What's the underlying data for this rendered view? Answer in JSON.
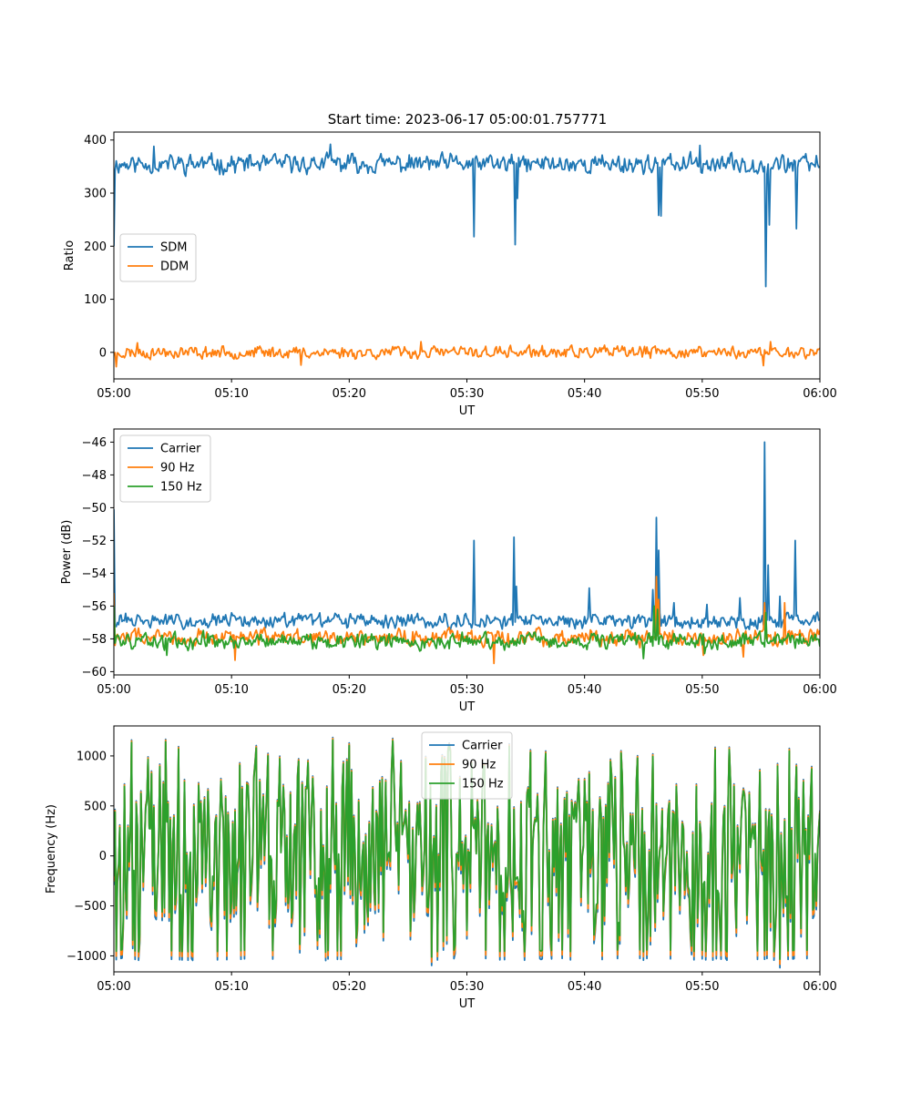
{
  "figure_title": "Start time: 2023-06-17 05:00:01.757771",
  "chart_data": [
    {
      "type": "line",
      "title": "Start time: 2023-06-17 05:00:01.757771",
      "xlabel": "UT",
      "ylabel": "Ratio",
      "xlim": [
        0,
        60
      ],
      "ylim": [
        -50,
        415
      ],
      "xticks": [
        0,
        10,
        20,
        30,
        40,
        50,
        60
      ],
      "xtick_labels": [
        "05:00",
        "05:10",
        "05:20",
        "05:30",
        "05:40",
        "05:50",
        "06:00"
      ],
      "yticks": [
        0,
        100,
        200,
        300,
        400
      ],
      "ytick_labels": [
        "0",
        "100",
        "200",
        "300",
        "400"
      ],
      "legend_position": "center-left",
      "grid": false,
      "x_unit": "minutes after 05:00 UT",
      "series": [
        {
          "name": "SDM",
          "color": "#1f77b4",
          "style": {
            "base": 355,
            "amp": 14,
            "seed": 11,
            "spikes": [
              [
                0,
                200
              ],
              [
                30.6,
                218
              ],
              [
                34.1,
                203
              ],
              [
                34.3,
                290
              ],
              [
                46.3,
                258
              ],
              [
                46.5,
                257
              ],
              [
                55.4,
                124
              ],
              [
                55.7,
                240
              ],
              [
                58.0,
                233
              ],
              [
                18.4,
                392
              ],
              [
                49.8,
                390
              ],
              [
                3.4,
                388
              ]
            ]
          }
        },
        {
          "name": "DDM",
          "color": "#ff7f0e",
          "style": {
            "base": 0,
            "amp": 9,
            "seed": 23,
            "spikes": [
              [
                0.2,
                -27
              ],
              [
                55.2,
                -25
              ],
              [
                15.9,
                -24
              ],
              [
                55.8,
                20
              ],
              [
                2.0,
                18
              ],
              [
                26.1,
                20
              ]
            ]
          }
        }
      ]
    },
    {
      "type": "line",
      "xlabel": "UT",
      "ylabel": "Power (dB)",
      "xlim": [
        0,
        60
      ],
      "ylim": [
        -60.2,
        -45.2
      ],
      "xticks": [
        0,
        10,
        20,
        30,
        40,
        50,
        60
      ],
      "xtick_labels": [
        "05:00",
        "05:10",
        "05:20",
        "05:30",
        "05:40",
        "05:50",
        "06:00"
      ],
      "yticks": [
        -60,
        -58,
        -56,
        -54,
        -52,
        -50,
        -48,
        -46
      ],
      "ytick_labels": [
        "−60",
        "−58",
        "−56",
        "−54",
        "−52",
        "−50",
        "−48",
        "−46"
      ],
      "legend_position": "top-left",
      "grid": false,
      "x_unit": "minutes after 05:00 UT",
      "series": [
        {
          "name": "Carrier",
          "color": "#1f77b4",
          "style": {
            "base": -56.9,
            "amp": 0.35,
            "seed": 31,
            "spikes": [
              [
                0,
                -50.1
              ],
              [
                30.6,
                -52.0
              ],
              [
                34.0,
                -51.8
              ],
              [
                34.2,
                -54.8
              ],
              [
                40.4,
                -54.9
              ],
              [
                45.8,
                -55.0
              ],
              [
                46.1,
                -50.6
              ],
              [
                46.3,
                -52.6
              ],
              [
                47.6,
                -55.8
              ],
              [
                50.4,
                -55.9
              ],
              [
                53.2,
                -55.5
              ],
              [
                55.3,
                -46.0
              ],
              [
                55.6,
                -53.5
              ],
              [
                56.6,
                -55.4
              ],
              [
                57.9,
                -52.0
              ]
            ]
          }
        },
        {
          "name": "90 Hz",
          "color": "#ff7f0e",
          "style": {
            "base": -57.9,
            "amp": 0.4,
            "seed": 47,
            "spikes": [
              [
                0,
                -55.2
              ],
              [
                46.1,
                -54.2
              ],
              [
                46.3,
                -55.6
              ],
              [
                55.3,
                -55.8
              ],
              [
                57.0,
                -55.8
              ],
              [
                32.3,
                -59.5
              ],
              [
                10.3,
                -59.3
              ],
              [
                53.5,
                -59.1
              ],
              [
                50.1,
                -59.0
              ]
            ]
          }
        },
        {
          "name": "150 Hz",
          "color": "#2ca02c",
          "style": {
            "base": -58.1,
            "amp": 0.38,
            "seed": 59,
            "spikes": [
              [
                0,
                -56.0
              ],
              [
                45.9,
                -56.0
              ],
              [
                46.2,
                -56.2
              ],
              [
                55.4,
                -56.4
              ],
              [
                45.0,
                -59.2
              ],
              [
                4.5,
                -59.0
              ],
              [
                50.2,
                -58.9
              ]
            ]
          }
        }
      ]
    },
    {
      "type": "line",
      "xlabel": "UT",
      "ylabel": "Frequency (Hz)",
      "xlim": [
        0,
        60
      ],
      "ylim": [
        -1160,
        1300
      ],
      "xticks": [
        0,
        10,
        20,
        30,
        40,
        50,
        60
      ],
      "xtick_labels": [
        "05:00",
        "05:10",
        "05:20",
        "05:30",
        "05:40",
        "05:50",
        "06:00"
      ],
      "yticks": [
        -1000,
        -500,
        0,
        500,
        1000
      ],
      "ytick_labels": [
        "−1000",
        "−500",
        "0",
        "500",
        "1000"
      ],
      "legend_position": "top-center",
      "grid": false,
      "x_unit": "minutes after 05:00 UT",
      "series": [
        {
          "name": "Carrier",
          "color": "#1f77b4",
          "style": {
            "base": 0,
            "amp": 1,
            "seed": 71,
            "scale": 1.0,
            "offset": -45
          }
        },
        {
          "name": "90 Hz",
          "color": "#ff7f0e",
          "style": {
            "base": 0,
            "amp": 1,
            "seed": 71,
            "scale": 1.0,
            "offset": -10
          }
        },
        {
          "name": "150 Hz",
          "color": "#2ca02c",
          "style": {
            "base": 0,
            "amp": 1,
            "seed": 71,
            "scale": 1.0,
            "offset": 40
          }
        }
      ]
    }
  ]
}
